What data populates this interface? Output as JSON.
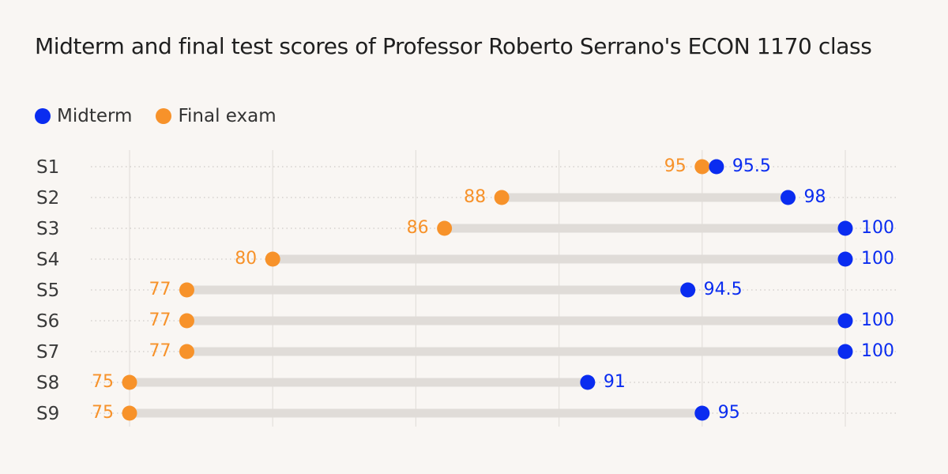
{
  "chart_data": {
    "type": "dumbbell",
    "title": "Midterm and final test scores of Professor Roberto Serrano's ECON 1170 class",
    "series": [
      {
        "name": "Midterm",
        "color": "#0a2cf0"
      },
      {
        "name": "Final exam",
        "color": "#f7922a"
      }
    ],
    "categories": [
      "S1",
      "S2",
      "S3",
      "S4",
      "S5",
      "S6",
      "S7",
      "S8",
      "S9"
    ],
    "midterm": [
      95.5,
      98,
      100,
      100,
      94.5,
      100,
      100,
      91,
      95
    ],
    "final": [
      95,
      88,
      86,
      80,
      77,
      77,
      77,
      75,
      75
    ],
    "xlim": [
      75,
      100
    ],
    "grid": true,
    "legend": "top-left"
  }
}
